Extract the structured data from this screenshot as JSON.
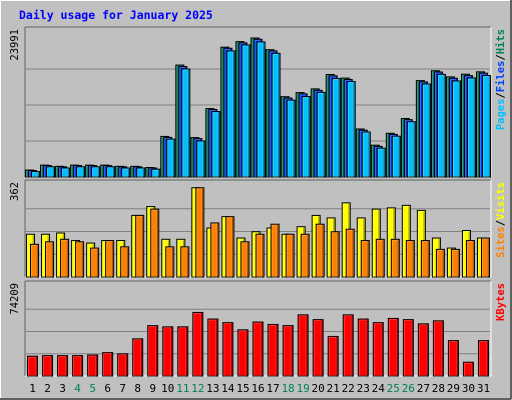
{
  "colors": {
    "background": "#c0c0c0",
    "panel": "#c0c0c0",
    "title": "#0000ff",
    "hits": "#00805c",
    "files": "#0040ff",
    "pages": "#00c0ff",
    "visits": "#ffff00",
    "sites": "#ff8000",
    "kbytes": "#ff0000",
    "weekend_day": "#00805c",
    "weekday": "#000000"
  },
  "chart_data": {
    "type": "bar",
    "title": "Daily usage for January 2025",
    "categories": [
      "1",
      "2",
      "3",
      "4",
      "5",
      "6",
      "7",
      "8",
      "9",
      "10",
      "11",
      "12",
      "13",
      "14",
      "15",
      "16",
      "17",
      "18",
      "19",
      "20",
      "21",
      "22",
      "23",
      "24",
      "25",
      "26",
      "27",
      "28",
      "29",
      "30",
      "31"
    ],
    "weekend_days": [
      4,
      5,
      11,
      12,
      18,
      19,
      25,
      26
    ],
    "panels": [
      {
        "id": "hits",
        "ylabel_parts": [
          {
            "text": "Pages",
            "color": "#00c0ff"
          },
          {
            "text": "/",
            "color": "#000000"
          },
          {
            "text": "Files",
            "color": "#0040ff"
          },
          {
            "text": "/",
            "color": "#000000"
          },
          {
            "text": "Hits",
            "color": "#00805c"
          }
        ],
        "max_label": "23991",
        "ymax": 23991,
        "series": [
          {
            "name": "Hits",
            "color": "#00805c",
            "values": [
              1160,
              1980,
              1780,
              1980,
              1980,
              1980,
              1780,
              1780,
              1580,
              6760,
              18650,
              6560,
              11400,
              21630,
              22550,
              23160,
              21210,
              13380,
              14060,
              14680,
              17080,
              16480,
              8000,
              5300,
              7280,
              9740,
              16060,
              17700,
              16680,
              17130,
              17520
            ]
          },
          {
            "name": "Files",
            "color": "#0040ff",
            "values": [
              1080,
              1900,
              1700,
              1900,
              1900,
              1900,
              1700,
              1700,
              1500,
              6600,
              18400,
              6400,
              11250,
              21450,
              22350,
              22950,
              21000,
              13150,
              13850,
              14450,
              16850,
              16250,
              7800,
              5100,
              7100,
              9550,
              15850,
              17500,
              16450,
              16900,
              17300
            ]
          },
          {
            "name": "Pages",
            "color": "#00c0ff",
            "values": [
              900,
              1700,
              1500,
              1700,
              1700,
              1700,
              1500,
              1500,
              1300,
              6300,
              18000,
              6000,
              10900,
              21000,
              22000,
              22500,
              20600,
              12800,
              13400,
              14100,
              16400,
              15900,
              7500,
              4800,
              6800,
              9200,
              15500,
              17100,
              16000,
              16500,
              16900
            ]
          }
        ]
      },
      {
        "id": "visits",
        "ylabel_parts": [
          {
            "text": "Sites",
            "color": "#ff8000"
          },
          {
            "text": "/",
            "color": "#000000"
          },
          {
            "text": "Visits",
            "color": "#ffff00"
          }
        ],
        "max_label": "362",
        "ymax": 362,
        "series": [
          {
            "name": "Visits",
            "color": "#ffff00",
            "values": [
              170,
              170,
              175,
              145,
              135,
              145,
              145,
              245,
              280,
              150,
              150,
              355,
              195,
              240,
              155,
              180,
              195,
              170,
              200,
              245,
              235,
              295,
              235,
              270,
              275,
              285,
              265,
              155,
              115,
              185,
              155
            ]
          },
          {
            "name": "Sites",
            "color": "#ff8000",
            "values": [
              130,
              140,
              150,
              140,
              115,
              145,
              120,
              245,
              270,
              120,
              120,
              355,
              215,
              240,
              140,
              170,
              210,
              170,
              170,
              210,
              180,
              190,
              145,
              150,
              150,
              145,
              145,
              110,
              110,
              145,
              155
            ]
          }
        ]
      },
      {
        "id": "kbytes",
        "ylabel_parts": [
          {
            "text": "KBytes",
            "color": "#ff0000"
          }
        ],
        "max_label": "74209",
        "ymax": 74209,
        "series": [
          {
            "name": "KBytes",
            "color": "#ff0000",
            "values": [
              16500,
              17000,
              17000,
              17000,
              17500,
              19500,
              18500,
              31000,
              42000,
              41000,
              41000,
              53000,
              47500,
              44500,
              38500,
              45000,
              43000,
              42000,
              51000,
              47000,
              33000,
              51000,
              47500,
              44500,
              48000,
              47000,
              43500,
              46000,
              29500,
              11500,
              29500
            ]
          }
        ]
      }
    ]
  }
}
